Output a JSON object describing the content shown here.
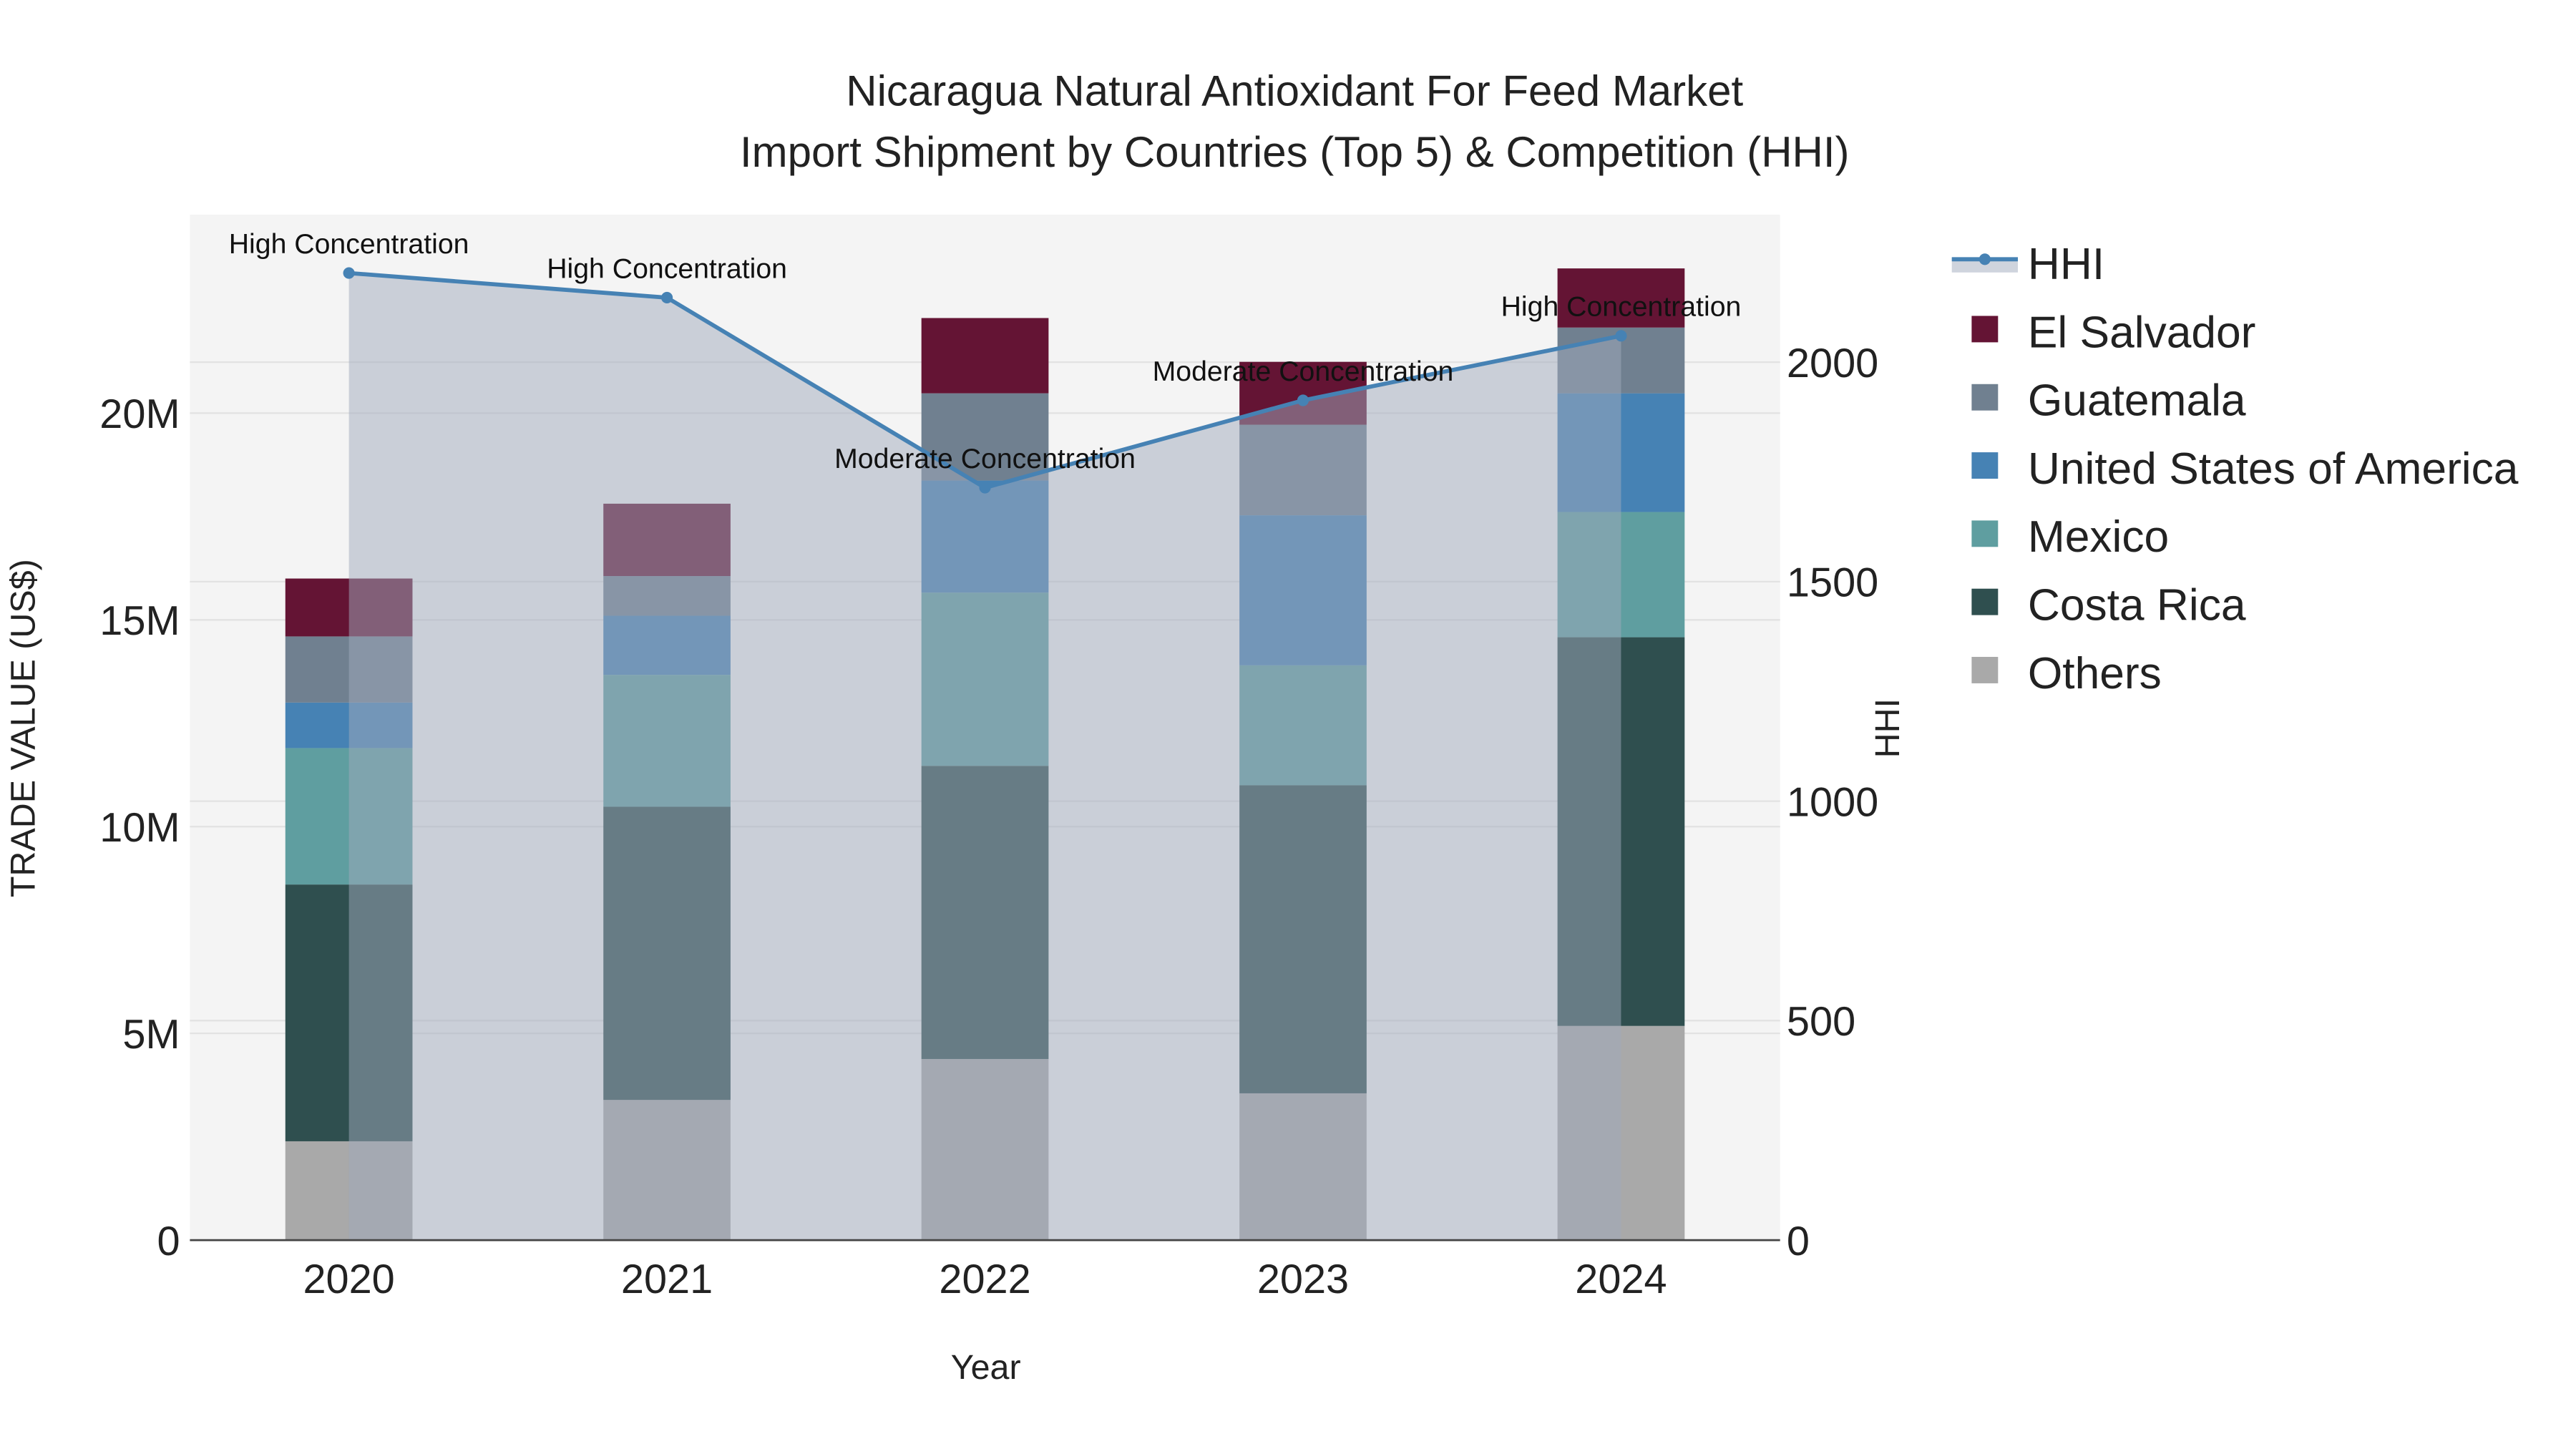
{
  "chart_data": {
    "type": "bar",
    "title_line1": "Nicaragua Natural Antioxidant For Feed Market",
    "title_line2": "Import Shipment by Countries (Top 5) & Competition (HHI)",
    "xlabel": "Year",
    "ylabel": "TRADE VALUE (US$)",
    "y2label": "HHI",
    "categories": [
      "2020",
      "2021",
      "2022",
      "2023",
      "2024"
    ],
    "ylim": [
      0,
      24800000
    ],
    "y2lim": [
      0,
      2336
    ],
    "yticks": [
      {
        "v": 0,
        "label": "0"
      },
      {
        "v": 5000000,
        "label": "5M"
      },
      {
        "v": 10000000,
        "label": "10M"
      },
      {
        "v": 15000000,
        "label": "15M"
      },
      {
        "v": 20000000,
        "label": "20M"
      }
    ],
    "y2ticks": [
      {
        "v": 0,
        "label": "0"
      },
      {
        "v": 500,
        "label": "500"
      },
      {
        "v": 1000,
        "label": "1000"
      },
      {
        "v": 1500,
        "label": "1500"
      },
      {
        "v": 2000,
        "label": "2000"
      }
    ],
    "series": [
      {
        "name": "Others",
        "color": "#A9A9A9",
        "values": [
          2390000,
          3390000,
          4380000,
          3550000,
          5180000
        ]
      },
      {
        "name": "Costa Rica",
        "color": "#2F4F4F",
        "values": [
          6210000,
          7090000,
          7090000,
          7450000,
          9400000
        ]
      },
      {
        "name": "Mexico",
        "color": "#5F9EA0",
        "values": [
          3300000,
          3190000,
          4190000,
          2900000,
          3030000
        ]
      },
      {
        "name": "United States of America",
        "color": "#4682B4",
        "values": [
          1100000,
          1430000,
          2710000,
          3630000,
          2870000
        ]
      },
      {
        "name": "Guatemala",
        "color": "#708090",
        "values": [
          1600000,
          960000,
          2110000,
          2190000,
          1590000
        ]
      },
      {
        "name": "El Salvador",
        "color": "#641434",
        "values": [
          1400000,
          1750000,
          1820000,
          1520000,
          1430000
        ]
      }
    ],
    "hhi": {
      "name": "HHI",
      "color": "#4682B4",
      "values": [
        2203,
        2147,
        1714,
        1913,
        2060
      ],
      "annotations": [
        "High Concentration",
        "High Concentration",
        "Moderate Concentration",
        "Moderate Concentration",
        "High Concentration"
      ]
    },
    "legend_order": [
      "HHI",
      "El Salvador",
      "Guatemala",
      "United States of America",
      "Mexico",
      "Costa Rica",
      "Others"
    ],
    "legend_placement": "right",
    "grid": true
  }
}
